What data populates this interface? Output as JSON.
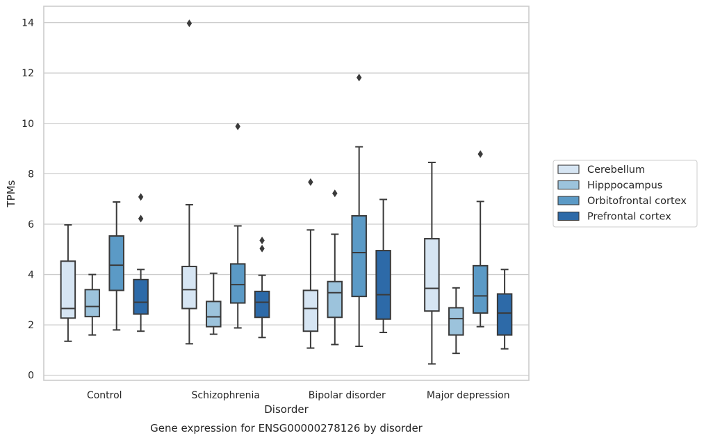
{
  "chart_data": {
    "type": "boxplot",
    "title": "Gene expression for ENSG00000278126 by disorder",
    "xlabel": "Disorder",
    "ylabel": "TPMs",
    "ylim": [
      -0.2,
      14.65
    ],
    "yticks": [
      0,
      2,
      4,
      6,
      8,
      10,
      12,
      14
    ],
    "grid": "horizontal",
    "legend_position": "right",
    "categories": [
      "Control",
      "Schizophrenia",
      "Bipolar disorder",
      "Major depression"
    ],
    "series": [
      {
        "name": "Cerebellum",
        "color": "#d6e5f3",
        "boxes": [
          {
            "whislo": 1.35,
            "q1": 2.27,
            "med": 2.65,
            "q3": 4.53,
            "whishi": 5.97,
            "fliers": []
          },
          {
            "whislo": 1.25,
            "q1": 2.65,
            "med": 3.4,
            "q3": 4.32,
            "whishi": 6.77,
            "fliers": [
              13.97
            ]
          },
          {
            "whislo": 1.08,
            "q1": 1.75,
            "med": 2.65,
            "q3": 3.37,
            "whishi": 5.77,
            "fliers": [
              7.67
            ]
          },
          {
            "whislo": 0.45,
            "q1": 2.55,
            "med": 3.45,
            "q3": 5.42,
            "whishi": 8.45,
            "fliers": []
          }
        ]
      },
      {
        "name": "Hipppocampus",
        "color": "#9cc3dc",
        "boxes": [
          {
            "whislo": 1.6,
            "q1": 2.33,
            "med": 2.73,
            "q3": 3.4,
            "whishi": 4.0,
            "fliers": []
          },
          {
            "whislo": 1.63,
            "q1": 1.93,
            "med": 2.32,
            "q3": 2.93,
            "whishi": 4.05,
            "fliers": []
          },
          {
            "whislo": 1.22,
            "q1": 2.3,
            "med": 3.28,
            "q3": 3.72,
            "whishi": 5.6,
            "fliers": [
              7.22
            ]
          },
          {
            "whislo": 0.87,
            "q1": 1.6,
            "med": 2.25,
            "q3": 2.68,
            "whishi": 3.47,
            "fliers": []
          }
        ]
      },
      {
        "name": "Orbitofrontal cortex",
        "color": "#5b9ac6",
        "boxes": [
          {
            "whislo": 1.8,
            "q1": 3.37,
            "med": 4.37,
            "q3": 5.53,
            "whishi": 6.88,
            "fliers": []
          },
          {
            "whislo": 1.88,
            "q1": 2.87,
            "med": 3.6,
            "q3": 4.42,
            "whishi": 5.93,
            "fliers": [
              9.88
            ]
          },
          {
            "whislo": 1.15,
            "q1": 3.13,
            "med": 4.87,
            "q3": 6.33,
            "whishi": 9.07,
            "fliers": [
              11.82
            ]
          },
          {
            "whislo": 1.93,
            "q1": 2.47,
            "med": 3.15,
            "q3": 4.35,
            "whishi": 6.9,
            "fliers": [
              8.78
            ]
          }
        ]
      },
      {
        "name": "Prefrontal cortex",
        "color": "#2d6aa8",
        "boxes": [
          {
            "whislo": 1.75,
            "q1": 2.43,
            "med": 2.9,
            "q3": 3.8,
            "whishi": 4.2,
            "fliers": [
              6.22,
              7.08
            ]
          },
          {
            "whislo": 1.5,
            "q1": 2.3,
            "med": 2.9,
            "q3": 3.33,
            "whishi": 3.97,
            "fliers": [
              5.03,
              5.35
            ]
          },
          {
            "whislo": 1.7,
            "q1": 2.23,
            "med": 3.2,
            "q3": 4.95,
            "whishi": 6.98,
            "fliers": []
          },
          {
            "whislo": 1.05,
            "q1": 1.6,
            "med": 2.47,
            "q3": 3.23,
            "whishi": 4.2,
            "fliers": []
          }
        ]
      }
    ]
  }
}
